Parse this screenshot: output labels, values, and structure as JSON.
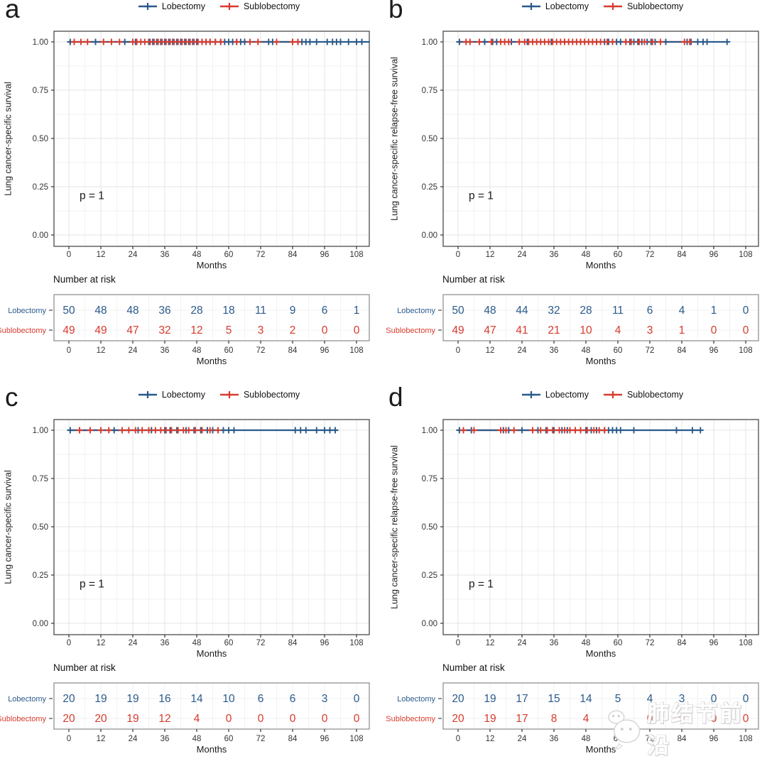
{
  "colors": {
    "lobectomy": "#2A5A8C",
    "sublobectomy": "#D73B2D",
    "grid_major": "#e4e4e4",
    "grid_minor": "#f2f2f2",
    "panel_border": "#4a4a4a",
    "table_border": "#8a8a8a",
    "axis_text": "#333333",
    "text": "#1a1a1a"
  },
  "watermark": {
    "text": "肺结节前沿",
    "logo": "bird-logo"
  },
  "chart_data": {
    "type": "line",
    "figure": "Kaplan-Meier survival curves, 2x2 panel figure, Lobectomy vs Sublobectomy",
    "grid": true,
    "legend_position": "top-center",
    "panels": [
      {
        "letter": "a",
        "ylabel": "Lung cancer-specific survival",
        "xlabel": "Months",
        "p_text": "p = 1",
        "ylim": [
          0,
          1
        ],
        "xlim": [
          0,
          113
        ],
        "x_ticks": [
          0,
          12,
          24,
          36,
          48,
          60,
          72,
          84,
          96,
          108
        ],
        "y_ticks": [
          "1.00",
          "0.75",
          "0.50",
          "0.25",
          "0.00"
        ],
        "series": [
          {
            "name": "Lobectomy",
            "color_key": "lobectomy",
            "survival": 1.0,
            "line_end": 113,
            "censor_x": [
              0.5,
              10,
              21,
              25,
              30,
              31.5,
              33,
              34.5,
              36,
              37.5,
              39,
              40.5,
              42,
              43.5,
              45,
              46.5,
              48,
              50,
              51.5,
              53,
              55,
              57,
              58.5,
              60,
              61.5,
              63,
              64.5,
              66,
              75,
              76.5,
              84,
              86,
              87.5,
              89,
              90.5,
              93,
              97,
              99,
              100.5,
              102,
              105,
              108,
              110
            ]
          },
          {
            "name": "Sublobectomy",
            "color_key": "sublobectomy",
            "survival": 1.0,
            "line_end": 87,
            "censor_x": [
              2,
              4.5,
              7,
              13,
              16,
              19,
              24,
              25.5,
              27,
              28.5,
              30.5,
              32,
              33.5,
              35,
              36.5,
              38,
              39.5,
              41,
              42.5,
              44,
              45.5,
              47,
              48.5,
              50,
              51.5,
              53,
              55,
              57,
              63,
              68,
              71,
              78,
              84,
              86
            ]
          }
        ],
        "risk_table": {
          "title": "Number at risk",
          "times": [
            0,
            12,
            24,
            36,
            48,
            60,
            72,
            84,
            96,
            108
          ],
          "rows": [
            {
              "label": "Lobectomy",
              "color_key": "lobectomy",
              "values": [
                50,
                48,
                48,
                36,
                28,
                18,
                11,
                9,
                6,
                1
              ]
            },
            {
              "label": "Sublobectomy",
              "color_key": "sublobectomy",
              "values": [
                49,
                49,
                47,
                32,
                12,
                5,
                3,
                2,
                0,
                0
              ]
            }
          ]
        }
      },
      {
        "letter": "b",
        "ylabel": "Lung cancer-specific relapse-free survival",
        "xlabel": "Months",
        "p_text": "p = 1",
        "ylim": [
          0,
          1
        ],
        "xlim": [
          0,
          113
        ],
        "x_ticks": [
          0,
          12,
          24,
          36,
          48,
          60,
          72,
          84,
          96,
          108
        ],
        "y_ticks": [
          "1.00",
          "0.75",
          "0.50",
          "0.25",
          "0.00"
        ],
        "series": [
          {
            "name": "Lobectomy",
            "color_key": "lobectomy",
            "survival": 1.0,
            "line_end": 101,
            "censor_x": [
              0.5,
              10,
              13,
              14.5,
              20,
              26,
              35,
              40,
              46,
              52,
              55,
              56.5,
              58,
              59.5,
              61,
              63,
              64.5,
              66,
              67.5,
              69,
              71,
              72.5,
              74,
              78,
              86,
              87.5,
              90,
              92,
              93.5,
              101
            ]
          },
          {
            "name": "Sublobectomy",
            "color_key": "sublobectomy",
            "survival": 1.0,
            "line_end": 88,
            "censor_x": [
              3,
              4.5,
              8,
              12.5,
              16,
              17.5,
              19,
              23,
              25,
              26.5,
              28,
              29.5,
              31,
              32.5,
              34,
              35.5,
              37,
              38.5,
              40,
              41.5,
              43,
              44.5,
              46,
              47.5,
              49,
              50.5,
              52,
              53.5,
              56,
              58,
              63,
              65,
              68,
              70,
              73,
              76,
              85,
              87
            ]
          }
        ],
        "risk_table": {
          "title": "Number at risk",
          "times": [
            0,
            12,
            24,
            36,
            48,
            60,
            72,
            84,
            96,
            108
          ],
          "rows": [
            {
              "label": "Lobectomy",
              "color_key": "lobectomy",
              "values": [
                50,
                48,
                44,
                32,
                28,
                11,
                6,
                4,
                1,
                0
              ]
            },
            {
              "label": "Sublobectomy",
              "color_key": "sublobectomy",
              "values": [
                49,
                47,
                41,
                21,
                10,
                4,
                3,
                1,
                0,
                0
              ]
            }
          ]
        }
      },
      {
        "letter": "c",
        "ylabel": "Lung cancer-specific survival",
        "xlabel": "Months",
        "p_text": "p = 1",
        "ylim": [
          0,
          1
        ],
        "xlim": [
          0,
          113
        ],
        "x_ticks": [
          0,
          12,
          24,
          36,
          48,
          60,
          72,
          84,
          96,
          108
        ],
        "y_ticks": [
          "1.00",
          "0.75",
          "0.50",
          "0.25",
          "0.00"
        ],
        "series": [
          {
            "name": "Lobectomy",
            "color_key": "lobectomy",
            "survival": 1.0,
            "line_end": 101,
            "censor_x": [
              0.5,
              17,
              26,
              31,
              36,
              38,
              40.5,
              44,
              47,
              49.5,
              52,
              54,
              56,
              58,
              60,
              62,
              85,
              87,
              89,
              93,
              96,
              98,
              100
            ]
          },
          {
            "name": "Sublobectomy",
            "color_key": "sublobectomy",
            "survival": 1.0,
            "line_end": 56,
            "censor_x": [
              4,
              8,
              12,
              15,
              20,
              22.5,
              25,
              27.5,
              30,
              32.5,
              34.5,
              36.5,
              38.5,
              41,
              43,
              45,
              47.5,
              50,
              53,
              56
            ]
          }
        ],
        "risk_table": {
          "title": "Number at risk",
          "times": [
            0,
            12,
            24,
            36,
            48,
            60,
            72,
            84,
            96,
            108
          ],
          "rows": [
            {
              "label": "Lobectomy",
              "color_key": "lobectomy",
              "values": [
                20,
                19,
                19,
                16,
                14,
                10,
                6,
                6,
                3,
                0
              ]
            },
            {
              "label": "Sublobectomy",
              "color_key": "sublobectomy",
              "values": [
                20,
                20,
                19,
                12,
                4,
                0,
                0,
                0,
                0,
                0
              ]
            }
          ]
        }
      },
      {
        "letter": "d",
        "ylabel": "Lung cancer-specific relapse-free survival",
        "xlabel": "Months",
        "p_text": "p = 1",
        "ylim": [
          0,
          1
        ],
        "xlim": [
          0,
          113
        ],
        "x_ticks": [
          0,
          12,
          24,
          36,
          48,
          60,
          72,
          84,
          96,
          108
        ],
        "y_ticks": [
          "1.00",
          "0.75",
          "0.50",
          "0.25",
          "0.00"
        ],
        "series": [
          {
            "name": "Lobectomy",
            "color_key": "lobectomy",
            "survival": 1.0,
            "line_end": 91.5,
            "censor_x": [
              0.5,
              5,
              17,
              19,
              24,
              30,
              33,
              36,
              39,
              41,
              44,
              48,
              50,
              52,
              55,
              56.5,
              58,
              59.5,
              61,
              66,
              82,
              88,
              91
            ]
          },
          {
            "name": "Sublobectomy",
            "color_key": "sublobectomy",
            "survival": 1.0,
            "line_end": 55,
            "censor_x": [
              2,
              6,
              16,
              18,
              21,
              28,
              31,
              33.5,
              35.5,
              38,
              40,
              42,
              44,
              46,
              48.5,
              51,
              53,
              55
            ]
          }
        ],
        "risk_table": {
          "title": "Number at risk",
          "times": [
            0,
            12,
            24,
            36,
            48,
            60,
            72,
            84,
            96,
            108
          ],
          "rows": [
            {
              "label": "Lobectomy",
              "color_key": "lobectomy",
              "values": [
                20,
                19,
                17,
                15,
                14,
                5,
                4,
                3,
                0,
                0
              ]
            },
            {
              "label": "Sublobectomy",
              "color_key": "sublobectomy",
              "values": [
                20,
                19,
                17,
                8,
                4,
                0,
                0,
                0,
                0,
                0
              ]
            }
          ]
        }
      }
    ]
  }
}
